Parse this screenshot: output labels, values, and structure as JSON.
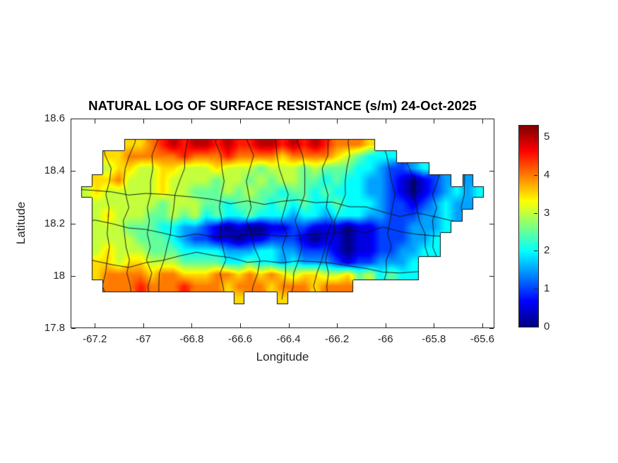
{
  "chart_data": {
    "type": "heatmap",
    "title": "NATURAL LOG OF SURFACE RESISTANCE (s/m) 24-Oct-2025",
    "xlabel": "Longitude",
    "ylabel": "Latitude",
    "xlim": [
      -67.3,
      -65.55
    ],
    "ylim": [
      17.8,
      18.6
    ],
    "grid_lines": "off",
    "xticks": {
      "values": [
        -67.2,
        -67,
        -66.8,
        -66.6,
        -66.4,
        -66.2,
        -66,
        -65.8,
        -65.6
      ],
      "labels": [
        "-67.2",
        "-67",
        "-66.8",
        "-66.6",
        "-66.4",
        "-66.2",
        "-66",
        "-65.8",
        "-65.6"
      ]
    },
    "yticks": {
      "values": [
        18.6,
        18.4,
        18.2,
        18,
        17.8
      ],
      "labels": [
        "18.6",
        "18.4",
        "18.2",
        "18",
        "17.8"
      ]
    },
    "colorbar": {
      "colormap": "jet",
      "min": 0,
      "max": 5.3,
      "tick_values": [
        0,
        1,
        2,
        3,
        4,
        5
      ],
      "tick_labels": [
        "0",
        "1",
        "2",
        "3",
        "4",
        "5"
      ]
    },
    "overlays": [
      "coastline",
      "municipality-boundaries"
    ],
    "grid": {
      "lon_start": -67.28,
      "lon_step": 0.045,
      "lat_start": 18.5,
      "lat_step": -0.045,
      "value_encoding": "hex digit divided by 2 gives ln(surface resistance) 0-5; '.' = water",
      "rows": [
        ".....7789A9AA9A99AA9A9A98887..........",
        "...778888898889888878888765444........",
        "...677667766676665666565554432234.....",
        "..778666766665665656655454433210123.3.",
        ".6766666766555656554554544433210123434",
        "..66666656665545554545445444322123433.",
        "..6766655656454454443443444332223343..",
        "..666555443321010011221110112223334...",
        "..66665554322110112221011011222334....",
        "..67666555444433344332221011223344....",
        "..776776665555445443433321223334......",
        "..788887887778878787677667564544......",
        "...88898889888788878887888............",
        "...............7...7.................."
      ]
    }
  }
}
